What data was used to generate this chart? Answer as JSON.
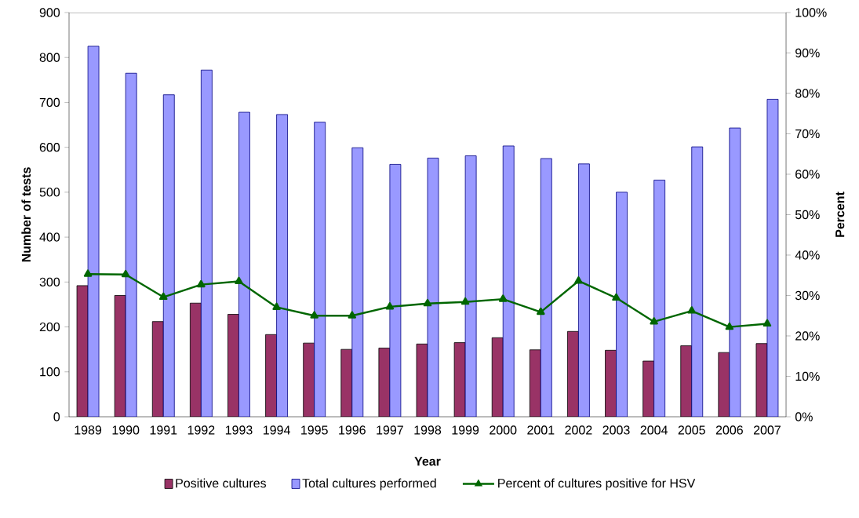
{
  "chart_data": {
    "type": "bar",
    "xlabel": "Year",
    "ylabel": "Number of tests",
    "y2label": "Percent",
    "categories": [
      "1989",
      "1990",
      "1991",
      "1992",
      "1993",
      "1994",
      "1995",
      "1996",
      "1997",
      "1998",
      "1999",
      "2000",
      "2001",
      "2002",
      "2003",
      "2004",
      "2005",
      "2006",
      "2007"
    ],
    "series": [
      {
        "name": "Positive cultures",
        "color": "#993366",
        "values": [
          292,
          270,
          212,
          253,
          228,
          183,
          164,
          150,
          153,
          162,
          165,
          176,
          149,
          190,
          148,
          124,
          158,
          143,
          163
        ]
      },
      {
        "name": "Total cultures performed",
        "color": "#9999ff",
        "values": [
          825,
          765,
          717,
          772,
          678,
          673,
          656,
          599,
          562,
          576,
          581,
          603,
          575,
          563,
          500,
          527,
          601,
          643,
          707
        ]
      },
      {
        "name": "Percent of cultures positive for HSV",
        "type": "line",
        "axis": "y2",
        "color": "#006600",
        "marker": "triangle",
        "line_style": "solid",
        "values": [
          35.3,
          35.2,
          29.6,
          32.7,
          33.5,
          27.1,
          25.0,
          25.0,
          27.2,
          28.0,
          28.4,
          29.1,
          25.9,
          33.6,
          29.4,
          23.5,
          26.2,
          22.2,
          23.0
        ]
      }
    ],
    "ylim": [
      0,
      900
    ],
    "yticks": [
      0,
      100,
      200,
      300,
      400,
      500,
      600,
      700,
      800,
      900
    ],
    "y2lim": [
      0,
      100
    ],
    "y2ticks": [
      {
        "value": 0,
        "label": "0%"
      },
      {
        "value": 10,
        "label": "10%"
      },
      {
        "value": 20,
        "label": "20%"
      },
      {
        "value": 30,
        "label": "30%"
      },
      {
        "value": 40,
        "label": "40%"
      },
      {
        "value": 50,
        "label": "50%"
      },
      {
        "value": 60,
        "label": "60%"
      },
      {
        "value": 70,
        "label": "70%"
      },
      {
        "value": 80,
        "label": "80%"
      },
      {
        "value": 90,
        "label": "90%"
      },
      {
        "value": 100,
        "label": "100%"
      }
    ],
    "grid": false,
    "legend": "bottom"
  }
}
